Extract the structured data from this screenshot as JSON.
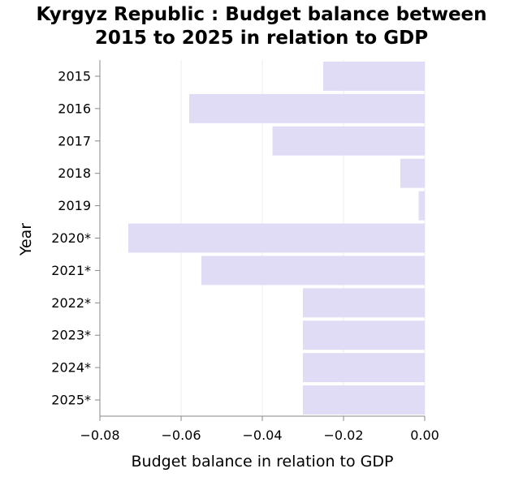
{
  "chart_data": {
    "type": "bar",
    "orientation": "horizontal",
    "title_lines": [
      "Kyrgyz Republic : Budget balance between",
      "2015 to 2025 in relation to GDP"
    ],
    "xlabel": "Budget balance in relation to GDP",
    "ylabel": "Year",
    "categories": [
      "2015",
      "2016",
      "2017",
      "2018",
      "2019",
      "2020*",
      "2021*",
      "2022*",
      "2023*",
      "2024*",
      "2025*"
    ],
    "values": [
      -0.025,
      -0.058,
      -0.0375,
      -0.006,
      -0.0015,
      -0.073,
      -0.055,
      -0.03,
      -0.03,
      -0.03,
      -0.03
    ],
    "xlim": [
      -0.08,
      0.0
    ],
    "xticks": [
      -0.08,
      -0.06,
      -0.04,
      -0.02,
      0.0
    ],
    "xtick_labels": [
      "−0.08",
      "−0.06",
      "−0.04",
      "−0.02",
      "0.00"
    ],
    "grid": "vertical gridlines",
    "legend": "none",
    "bar_color": "#e0dcf5"
  }
}
